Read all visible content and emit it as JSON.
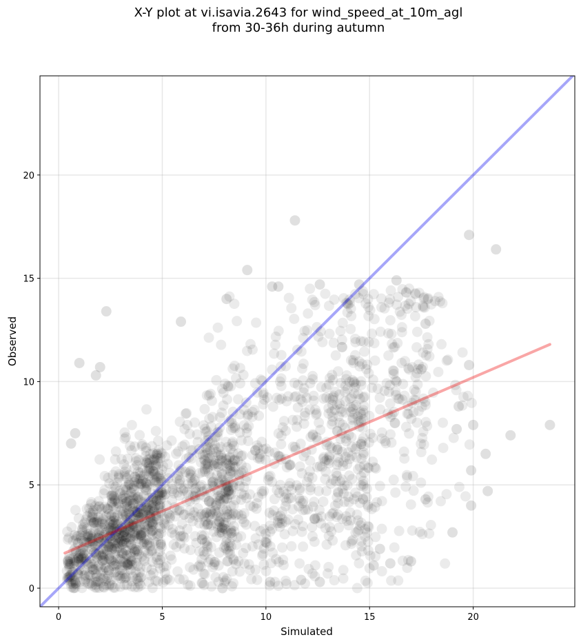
{
  "chart_data": {
    "type": "scatter",
    "title_line1": "X-Y plot at vi.isavia.2643 for wind_speed_at_10m_agl",
    "title_line2": "from 30-36h during autumn",
    "xlabel": "Simulated",
    "ylabel": "Observed",
    "xlim": [
      -0.9,
      24.9
    ],
    "ylim": [
      -0.9,
      24.8
    ],
    "xticks": [
      0,
      5,
      10,
      15,
      20
    ],
    "yticks": [
      0,
      5,
      10,
      15,
      20
    ],
    "grid": true,
    "identity_line": {
      "color": "#0000ee",
      "opacity": 0.35,
      "points": [
        [
          -0.9,
          -0.9
        ],
        [
          24.9,
          24.9
        ]
      ]
    },
    "regression_line": {
      "color": "#ee0000",
      "opacity": 0.35,
      "points": [
        [
          0.3,
          1.7
        ],
        [
          23.7,
          11.8
        ]
      ]
    },
    "point_color": "#000000",
    "point_opacity": 0.08,
    "approx_point_count": 2000,
    "outlier_points": [
      {
        "x": 2.3,
        "y": 13.4
      },
      {
        "x": 9.1,
        "y": 15.4
      },
      {
        "x": 11.4,
        "y": 17.8
      },
      {
        "x": 16.3,
        "y": 14.9
      },
      {
        "x": 19.8,
        "y": 17.1
      },
      {
        "x": 21.1,
        "y": 16.4
      },
      {
        "x": 23.7,
        "y": 7.9
      },
      {
        "x": 21.8,
        "y": 7.4
      },
      {
        "x": 20.7,
        "y": 4.7
      },
      {
        "x": 20.6,
        "y": 6.5
      },
      {
        "x": 19.9,
        "y": 4.0
      },
      {
        "x": 19.9,
        "y": 5.7
      },
      {
        "x": 20.0,
        "y": 7.9
      },
      {
        "x": 19.8,
        "y": 10.8
      },
      {
        "x": 19.3,
        "y": 8.8
      },
      {
        "x": 19.2,
        "y": 7.7
      },
      {
        "x": 19.0,
        "y": 2.7
      },
      {
        "x": 17.5,
        "y": 10.6
      },
      {
        "x": 17.7,
        "y": 12.8
      },
      {
        "x": 16.0,
        "y": 1.2
      },
      {
        "x": 15.2,
        "y": 1.1
      },
      {
        "x": 15.5,
        "y": 1.9
      },
      {
        "x": 11.7,
        "y": 0.4
      },
      {
        "x": 12.6,
        "y": 0.3
      },
      {
        "x": 10.2,
        "y": 0.3
      },
      {
        "x": 7.9,
        "y": 0.0
      },
      {
        "x": 1.0,
        "y": 10.9
      },
      {
        "x": 0.8,
        "y": 7.5
      },
      {
        "x": 0.6,
        "y": 7.0
      },
      {
        "x": 1.8,
        "y": 10.3
      },
      {
        "x": 2.0,
        "y": 10.7
      },
      {
        "x": 14.5,
        "y": 14.7
      },
      {
        "x": 12.6,
        "y": 14.7
      },
      {
        "x": 10.3,
        "y": 14.6
      },
      {
        "x": 10.6,
        "y": 14.6
      },
      {
        "x": 8.1,
        "y": 14.0
      },
      {
        "x": 5.9,
        "y": 12.9
      },
      {
        "x": 16.3,
        "y": 10.0
      },
      {
        "x": 17.0,
        "y": 1.3
      },
      {
        "x": 17.7,
        "y": 4.3
      }
    ]
  }
}
